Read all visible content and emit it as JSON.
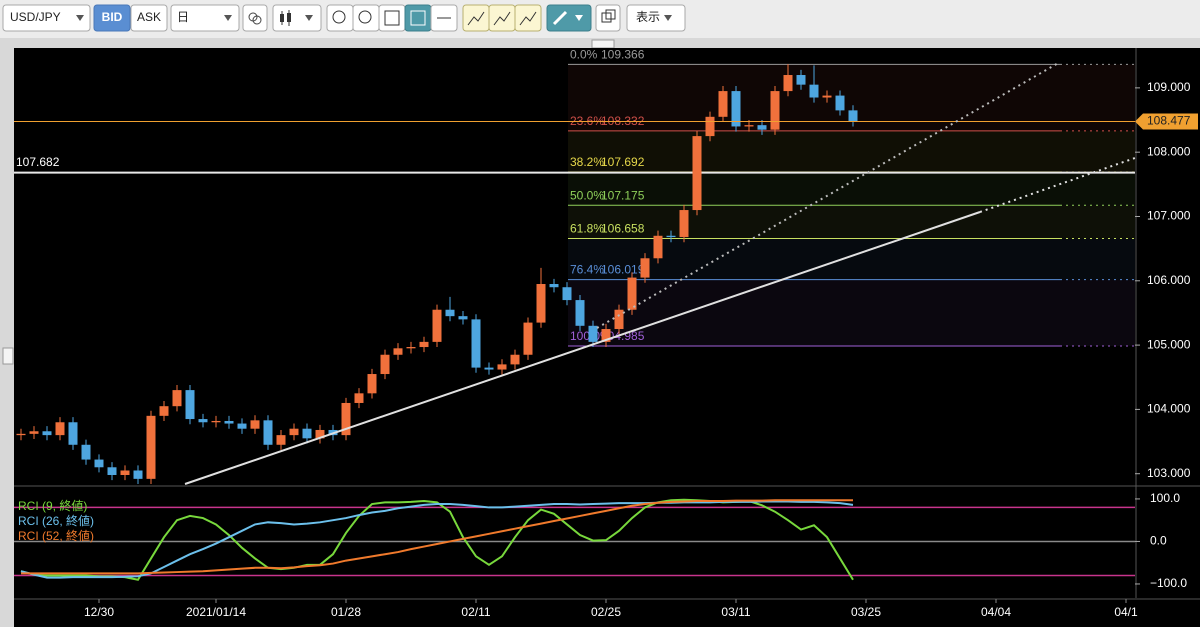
{
  "toolbar": {
    "symbol": "USD/JPY",
    "bid": "BID",
    "ask": "ASK",
    "period": "日",
    "display": "表示"
  },
  "chart_data": [
    {
      "type": "candlestick",
      "open": [
        103.6,
        103.62,
        103.66,
        103.6,
        103.8,
        103.45,
        103.22,
        103.1,
        102.98,
        103.05,
        102.92,
        103.9,
        104.05,
        104.3,
        103.85,
        103.8,
        103.82,
        103.78,
        103.7,
        103.83,
        103.45,
        103.6,
        103.7,
        103.55,
        103.68,
        103.6,
        104.1,
        104.25,
        104.55,
        104.85,
        104.95,
        104.97,
        105.05,
        105.55,
        105.45,
        105.4,
        104.65,
        104.62,
        104.7,
        104.85,
        105.35,
        105.95,
        105.9,
        105.7,
        105.3,
        105.05,
        105.25,
        105.55,
        106.05,
        106.35,
        106.7,
        106.68,
        107.1,
        108.25,
        108.55,
        108.95,
        108.4,
        108.42,
        108.35,
        108.95,
        109.2,
        109.05,
        108.85,
        108.88,
        108.65
      ],
      "high": [
        103.7,
        103.74,
        103.74,
        103.88,
        103.88,
        103.53,
        103.3,
        103.18,
        103.13,
        103.13,
        103.98,
        104.13,
        104.38,
        104.38,
        103.93,
        103.9,
        103.9,
        103.86,
        103.91,
        103.91,
        103.68,
        103.78,
        103.78,
        103.76,
        103.76,
        104.18,
        104.33,
        104.63,
        104.93,
        105.03,
        105.05,
        105.13,
        105.63,
        105.75,
        105.53,
        105.48,
        104.73,
        104.78,
        104.93,
        105.43,
        106.2,
        106.03,
        105.98,
        105.78,
        105.38,
        105.33,
        105.63,
        106.13,
        106.43,
        106.78,
        106.78,
        107.18,
        108.33,
        108.63,
        109.03,
        109.03,
        108.5,
        108.5,
        109.03,
        109.37,
        109.28,
        109.35,
        108.96,
        108.96,
        108.73
      ],
      "low": [
        103.52,
        103.54,
        103.52,
        103.52,
        103.37,
        103.14,
        103.02,
        102.9,
        102.9,
        102.84,
        102.84,
        103.82,
        103.97,
        103.77,
        103.72,
        103.72,
        103.7,
        103.62,
        103.62,
        103.37,
        103.37,
        103.52,
        103.47,
        103.47,
        103.52,
        103.52,
        104.02,
        104.17,
        104.47,
        104.77,
        104.87,
        104.89,
        104.97,
        105.37,
        105.32,
        104.57,
        104.54,
        104.54,
        104.62,
        104.77,
        105.27,
        105.82,
        105.62,
        105.22,
        104.97,
        104.97,
        105.17,
        105.47,
        105.97,
        106.27,
        106.6,
        106.6,
        107.02,
        108.17,
        108.47,
        108.32,
        108.32,
        108.27,
        108.27,
        108.87,
        108.97,
        108.77,
        108.77,
        108.57,
        108.4
      ],
      "close": [
        103.62,
        103.66,
        103.6,
        103.8,
        103.45,
        103.22,
        103.1,
        102.98,
        103.05,
        102.92,
        103.9,
        104.05,
        104.3,
        103.85,
        103.8,
        103.82,
        103.78,
        103.7,
        103.83,
        103.45,
        103.6,
        103.7,
        103.55,
        103.68,
        103.6,
        104.1,
        104.25,
        104.55,
        104.85,
        104.95,
        104.97,
        105.05,
        105.55,
        105.45,
        105.4,
        104.65,
        104.62,
        104.7,
        104.85,
        105.35,
        105.95,
        105.9,
        105.7,
        105.3,
        105.05,
        105.25,
        105.55,
        106.05,
        106.35,
        106.7,
        106.68,
        107.1,
        108.25,
        108.55,
        108.95,
        108.4,
        108.42,
        108.35,
        108.95,
        109.2,
        109.05,
        108.85,
        108.88,
        108.65,
        108.48
      ],
      "up_color": "#f0713c",
      "down_color": "#4ea6e0",
      "ylim": [
        102.84,
        109.62
      ],
      "yticks": [
        {
          "value": 103,
          "label": "103.000"
        },
        {
          "value": 104,
          "label": "104.000"
        },
        {
          "value": 105,
          "label": "105.000"
        },
        {
          "value": 106,
          "label": "106.000"
        },
        {
          "value": 107,
          "label": "107.000"
        },
        {
          "value": 108,
          "label": "108.000"
        },
        {
          "value": 109,
          "label": "109.000"
        }
      ],
      "current_price": 108.477,
      "current_price_color": "#f0a030",
      "horizontal_line": 107.682,
      "fibonacci": [
        {
          "level": "0.0%",
          "value": 109.366,
          "color": "#9a9a9a"
        },
        {
          "level": "23.6%",
          "value": 108.332,
          "color": "#d0504a"
        },
        {
          "level": "38.2%",
          "value": 107.692,
          "color": "#e6d84a"
        },
        {
          "level": "50.0%",
          "value": 107.175,
          "color": "#8fd05a"
        },
        {
          "level": "61.8%",
          "value": 106.658,
          "color": "#c8e060"
        },
        {
          "level": "76.4%",
          "value": 106.019,
          "color": "#5a8fd8"
        },
        {
          "level": "100.0%",
          "value": 104.985,
          "color": "#a060d8"
        }
      ]
    },
    {
      "type": "line",
      "categories": [
        null,
        null,
        null,
        null,
        null,
        null,
        "12/30",
        null,
        null,
        null,
        null,
        null,
        null,
        null,
        null,
        "2021/01/14",
        null,
        null,
        null,
        null,
        null,
        null,
        null,
        null,
        null,
        "01/28",
        null,
        null,
        null,
        null,
        null,
        null,
        null,
        null,
        null,
        "02/11",
        null,
        null,
        null,
        null,
        null,
        null,
        null,
        null,
        null,
        "02/25",
        null,
        null,
        null,
        null,
        null,
        null,
        null,
        null,
        null,
        "03/11",
        null,
        null,
        null,
        null,
        null,
        null,
        null,
        null,
        null,
        "03/25",
        null,
        null,
        null,
        null,
        null,
        null,
        null,
        null,
        null,
        "04/04",
        null,
        null,
        null,
        null,
        null,
        null,
        null,
        null,
        null,
        "04/1"
      ],
      "series": [
        {
          "name": "RCI (9, 終値)",
          "color": "#78d83c",
          "values": [
            -70,
            -78,
            -80,
            -80,
            -80,
            -80,
            -82,
            -82,
            -84,
            -90,
            -40,
            10,
            50,
            60,
            55,
            40,
            15,
            -15,
            -40,
            -62,
            -65,
            -62,
            -55,
            -55,
            -30,
            20,
            60,
            88,
            92,
            92,
            93,
            95,
            92,
            70,
            10,
            -35,
            -55,
            -35,
            10,
            50,
            75,
            65,
            40,
            15,
            2,
            3,
            25,
            55,
            80,
            92,
            97,
            98,
            97,
            95,
            92,
            93,
            95,
            85,
            70,
            50,
            28,
            38,
            10,
            -40,
            -90,
            null,
            null,
            null,
            null,
            null,
            null,
            null,
            null,
            null,
            null,
            null,
            null,
            null,
            null,
            null,
            null,
            null,
            null,
            null,
            null,
            null
          ]
        },
        {
          "name": "RCI (26, 終値)",
          "color": "#6cc0ec",
          "values": [
            -70,
            -78,
            -85,
            -85,
            -84,
            -84,
            -84,
            -84,
            -83,
            -82,
            -75,
            -60,
            -45,
            -30,
            -18,
            -5,
            10,
            25,
            40,
            45,
            43,
            40,
            42,
            45,
            50,
            55,
            62,
            68,
            72,
            78,
            82,
            86,
            88,
            88,
            86,
            83,
            80,
            80,
            82,
            84,
            86,
            88,
            88,
            87,
            88,
            89,
            90,
            90,
            90,
            91,
            91,
            92,
            92,
            92,
            93,
            93,
            93,
            94,
            94,
            94,
            93,
            93,
            92,
            90,
            86,
            null,
            null,
            null,
            null,
            null,
            null,
            null,
            null,
            null,
            null,
            null,
            null,
            null,
            null,
            null,
            null,
            null,
            null,
            null,
            null,
            null
          ]
        },
        {
          "name": "RCI (52, 終値)",
          "color": "#f07a2c",
          "values": [
            -75,
            -75,
            -75,
            -75,
            -75,
            -75,
            -75,
            -75,
            -75,
            -75,
            -74,
            -73,
            -72,
            -71,
            -70,
            -68,
            -66,
            -64,
            -62,
            -62,
            -63,
            -61,
            -58,
            -56,
            -52,
            -45,
            -40,
            -35,
            -30,
            -25,
            -18,
            -12,
            -6,
            0,
            6,
            12,
            18,
            24,
            30,
            36,
            42,
            48,
            54,
            60,
            66,
            72,
            78,
            84,
            88,
            91,
            93,
            94,
            95,
            95,
            95,
            96,
            96,
            96,
            97,
            97,
            97,
            97,
            97,
            97,
            97,
            null,
            null,
            null,
            null,
            null,
            null,
            null,
            null,
            null,
            null,
            null,
            null,
            null,
            null,
            null,
            null,
            null,
            null,
            null,
            null,
            null
          ]
        }
      ],
      "ylim": [
        -133,
        121
      ],
      "yticks": [
        {
          "value": 100,
          "label": "100.0"
        },
        {
          "value": 0,
          "label": "0.0"
        },
        {
          "value": -100,
          "label": "−100.0"
        }
      ],
      "hlines": [
        {
          "value": 80,
          "color": "#c8348c"
        },
        {
          "value": 0,
          "color": "#8a8a8a"
        },
        {
          "value": -80,
          "color": "#c8348c"
        }
      ]
    }
  ]
}
